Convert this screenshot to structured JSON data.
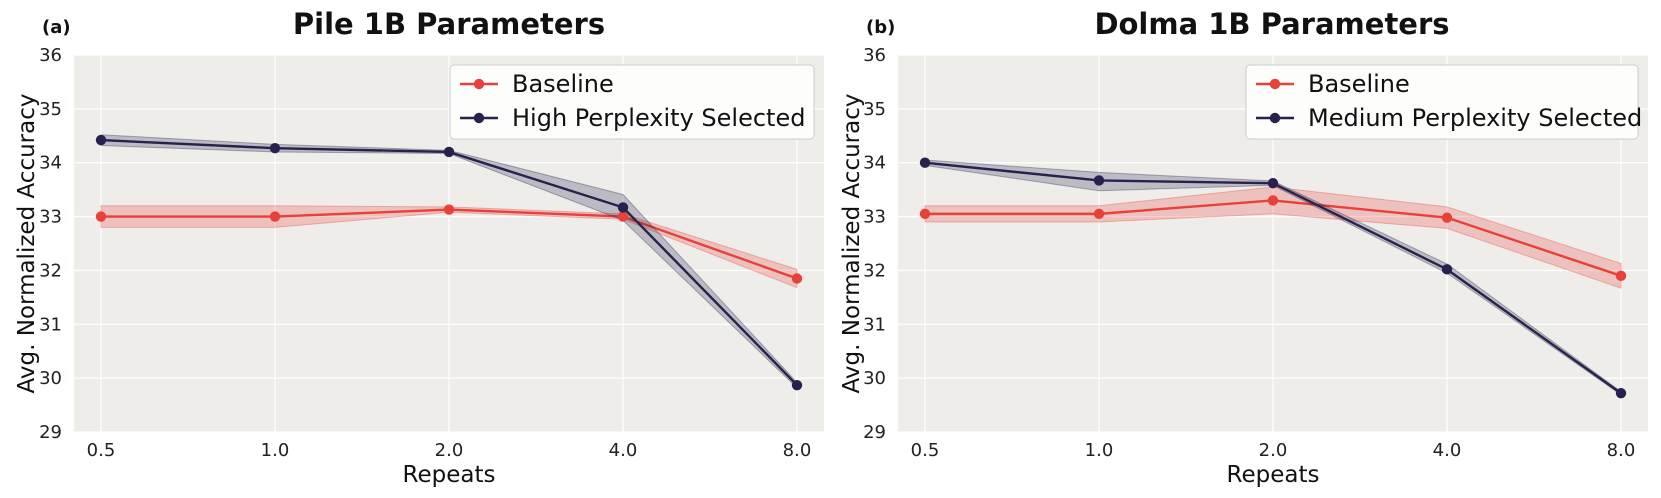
{
  "chart_data": [
    {
      "type": "line",
      "panel_label": "(a)",
      "title": "Pile 1B Parameters",
      "xlabel": "Repeats",
      "ylabel": "Avg. Normalized Accuracy",
      "categories": [
        "0.5",
        "1.0",
        "2.0",
        "4.0",
        "8.0"
      ],
      "ylim": [
        29,
        36
      ],
      "yticks": [
        "29",
        "30",
        "31",
        "32",
        "33",
        "34",
        "35",
        "36"
      ],
      "grid": true,
      "legend_position": "top-right",
      "series": [
        {
          "name": "Baseline",
          "color": "#e8413a",
          "values": [
            33.0,
            33.0,
            33.13,
            33.0,
            31.85
          ],
          "lower": [
            32.8,
            32.8,
            33.08,
            32.95,
            31.68
          ],
          "upper": [
            33.2,
            33.2,
            33.18,
            33.05,
            32.02
          ]
        },
        {
          "name": "High Perplexity Selected",
          "color": "#27224d",
          "values": [
            34.42,
            34.27,
            34.2,
            33.17,
            29.87
          ],
          "lower": [
            34.32,
            34.2,
            34.17,
            32.93,
            29.82
          ],
          "upper": [
            34.52,
            34.34,
            34.23,
            33.41,
            29.92
          ]
        }
      ]
    },
    {
      "type": "line",
      "panel_label": "(b)",
      "title": "Dolma 1B Parameters",
      "xlabel": "Repeats",
      "ylabel": "Avg. Normalized Accuracy",
      "categories": [
        "0.5",
        "1.0",
        "2.0",
        "4.0",
        "8.0"
      ],
      "ylim": [
        29,
        36
      ],
      "yticks": [
        "29",
        "30",
        "31",
        "32",
        "33",
        "34",
        "35",
        "36"
      ],
      "grid": true,
      "legend_position": "top-right",
      "series": [
        {
          "name": "Baseline",
          "color": "#e8413a",
          "values": [
            33.05,
            33.05,
            33.3,
            32.98,
            31.9
          ],
          "lower": [
            32.9,
            32.9,
            33.05,
            32.78,
            31.67
          ],
          "upper": [
            33.2,
            33.2,
            33.55,
            33.18,
            32.13
          ]
        },
        {
          "name": "Medium Perplexity Selected",
          "color": "#27224d",
          "values": [
            34.0,
            33.67,
            33.62,
            32.02,
            29.72
          ],
          "lower": [
            33.95,
            33.48,
            33.58,
            31.95,
            29.69
          ],
          "upper": [
            34.05,
            33.82,
            33.66,
            32.12,
            29.75
          ]
        }
      ]
    }
  ]
}
